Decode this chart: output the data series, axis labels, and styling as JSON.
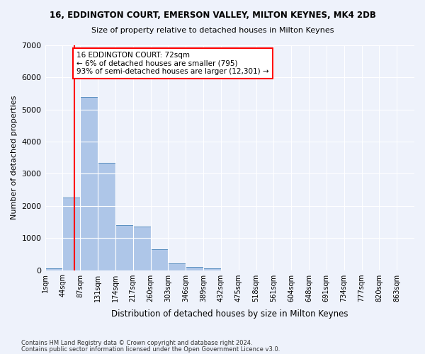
{
  "title1": "16, EDDINGTON COURT, EMERSON VALLEY, MILTON KEYNES, MK4 2DB",
  "title2": "Size of property relative to detached houses in Milton Keynes",
  "xlabel": "Distribution of detached houses by size in Milton Keynes",
  "ylabel": "Number of detached properties",
  "bin_labels": [
    "1sqm",
    "44sqm",
    "87sqm",
    "131sqm",
    "174sqm",
    "217sqm",
    "260sqm",
    "303sqm",
    "346sqm",
    "389sqm",
    "432sqm",
    "475sqm",
    "518sqm",
    "561sqm",
    "604sqm",
    "648sqm",
    "691sqm",
    "734sqm",
    "777sqm",
    "820sqm",
    "863sqm"
  ],
  "bar_heights": [
    50,
    2250,
    5400,
    3350,
    1400,
    1350,
    650,
    200,
    100,
    50,
    0,
    0,
    0,
    0,
    0,
    0,
    0,
    0,
    0,
    0,
    0
  ],
  "bar_color": "#aec6e8",
  "bar_edge_color": "#5a8fc0",
  "annotation_text": "16 EDDINGTON COURT: 72sqm\n← 6% of detached houses are smaller (795)\n93% of semi-detached houses are larger (12,301) →",
  "annotation_box_color": "white",
  "annotation_box_edge_color": "red",
  "vline_color": "red",
  "ylim": [
    0,
    7000
  ],
  "yticks": [
    0,
    1000,
    2000,
    3000,
    4000,
    5000,
    6000,
    7000
  ],
  "footer1": "Contains HM Land Registry data © Crown copyright and database right 2024.",
  "footer2": "Contains public sector information licensed under the Open Government Licence v3.0.",
  "background_color": "#eef2fb",
  "grid_color": "white"
}
